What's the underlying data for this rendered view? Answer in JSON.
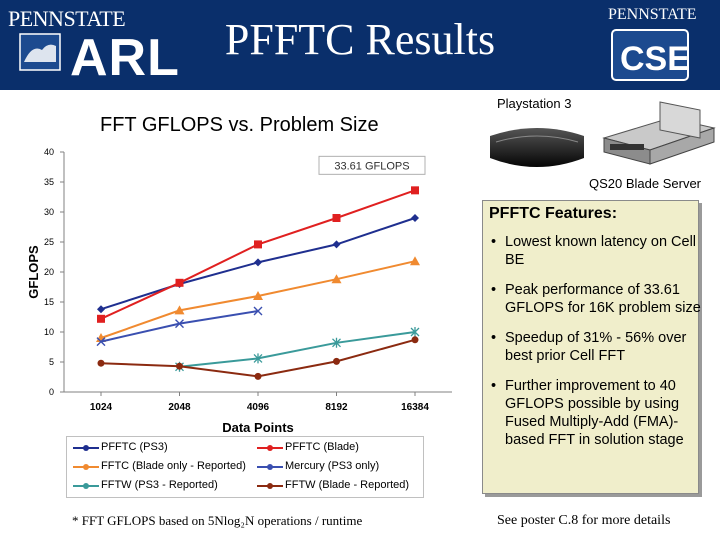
{
  "header": {
    "title": "PFFTC Results",
    "left_logo_top": "PENNSTATE",
    "left_logo_bottom": "ARL",
    "right_logo_top": "PENNSTATE",
    "right_logo_bottom": "CSE",
    "background": "#0a2f6b"
  },
  "images": {
    "ps3_label": "Playstation 3",
    "qs20_label": "QS20 Blade Server"
  },
  "features": {
    "heading": "PFFTC Features:",
    "items": [
      "Lowest known latency on Cell BE",
      "Peak performance of 33.61 GFLOPS for 16K problem size",
      "Speedup of 31% - 56% over best prior Cell FFT",
      "Further improvement to 40 GFLOPS possible by using Fused Multiply-Add (FMA)-based FFT in solution stage"
    ]
  },
  "footer": {
    "footnote": "* FFT GFLOPS based on 5Nlog₂N operations / runtime",
    "poster": "See poster C.8 for more details"
  },
  "chart_data": {
    "type": "line",
    "title": "FFT GFLOPS vs. Problem Size",
    "xlabel": "Data Points",
    "ylabel": "GFLOPS",
    "categories": [
      "1024",
      "2048",
      "4096",
      "8192",
      "16384"
    ],
    "ylim": [
      0,
      40
    ],
    "yticks": [
      "0",
      "5",
      "10",
      "15",
      "20",
      "25",
      "30",
      "35",
      "40"
    ],
    "grid": false,
    "legend_position": "bottom",
    "annotation": "33.61 GFLOPS",
    "series": [
      {
        "name": "PFFTC (PS3)",
        "color": "#1f2f8f",
        "marker": "diamond",
        "values": [
          13.8,
          18.0,
          21.6,
          24.6,
          29.0
        ]
      },
      {
        "name": "PFFTC (Blade)",
        "color": "#e02020",
        "marker": "square",
        "values": [
          12.2,
          18.2,
          24.6,
          29.0,
          33.61
        ]
      },
      {
        "name": "FFTC (Blade only - Reported)",
        "color": "#f08a30",
        "marker": "triangle",
        "values": [
          9.0,
          13.6,
          16.0,
          18.8,
          21.8
        ]
      },
      {
        "name": "Mercury (PS3 only)",
        "color": "#3a4fb0",
        "marker": "x",
        "values": [
          8.4,
          11.4,
          13.5,
          null,
          null
        ]
      },
      {
        "name": "FFTW (PS3 - Reported)",
        "color": "#3a9a9a",
        "marker": "asterisk",
        "values": [
          null,
          4.2,
          5.6,
          8.2,
          10.0
        ]
      },
      {
        "name": "FFTW (Blade - Reported)",
        "color": "#8b2a10",
        "marker": "circle",
        "values": [
          4.8,
          4.3,
          2.6,
          5.1,
          8.7
        ]
      }
    ]
  }
}
